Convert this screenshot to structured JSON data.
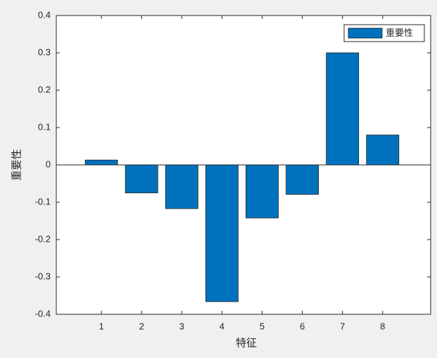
{
  "chart_data": {
    "type": "bar",
    "x_label": "特征",
    "y_label": "重要性",
    "categories": [
      "1",
      "2",
      "3",
      "4",
      "5",
      "6",
      "7",
      "8"
    ],
    "series": [
      {
        "name": "重要性",
        "color": "#0072bd",
        "values": [
          0.013,
          -0.075,
          -0.117,
          -0.366,
          -0.142,
          -0.079,
          0.3,
          0.08
        ]
      }
    ],
    "ylim": [
      -0.4,
      0.4
    ],
    "yticks": [
      -0.4,
      -0.3,
      -0.2,
      -0.1,
      0,
      0.1,
      0.2,
      0.3,
      0.4
    ],
    "legend": "top-right"
  }
}
